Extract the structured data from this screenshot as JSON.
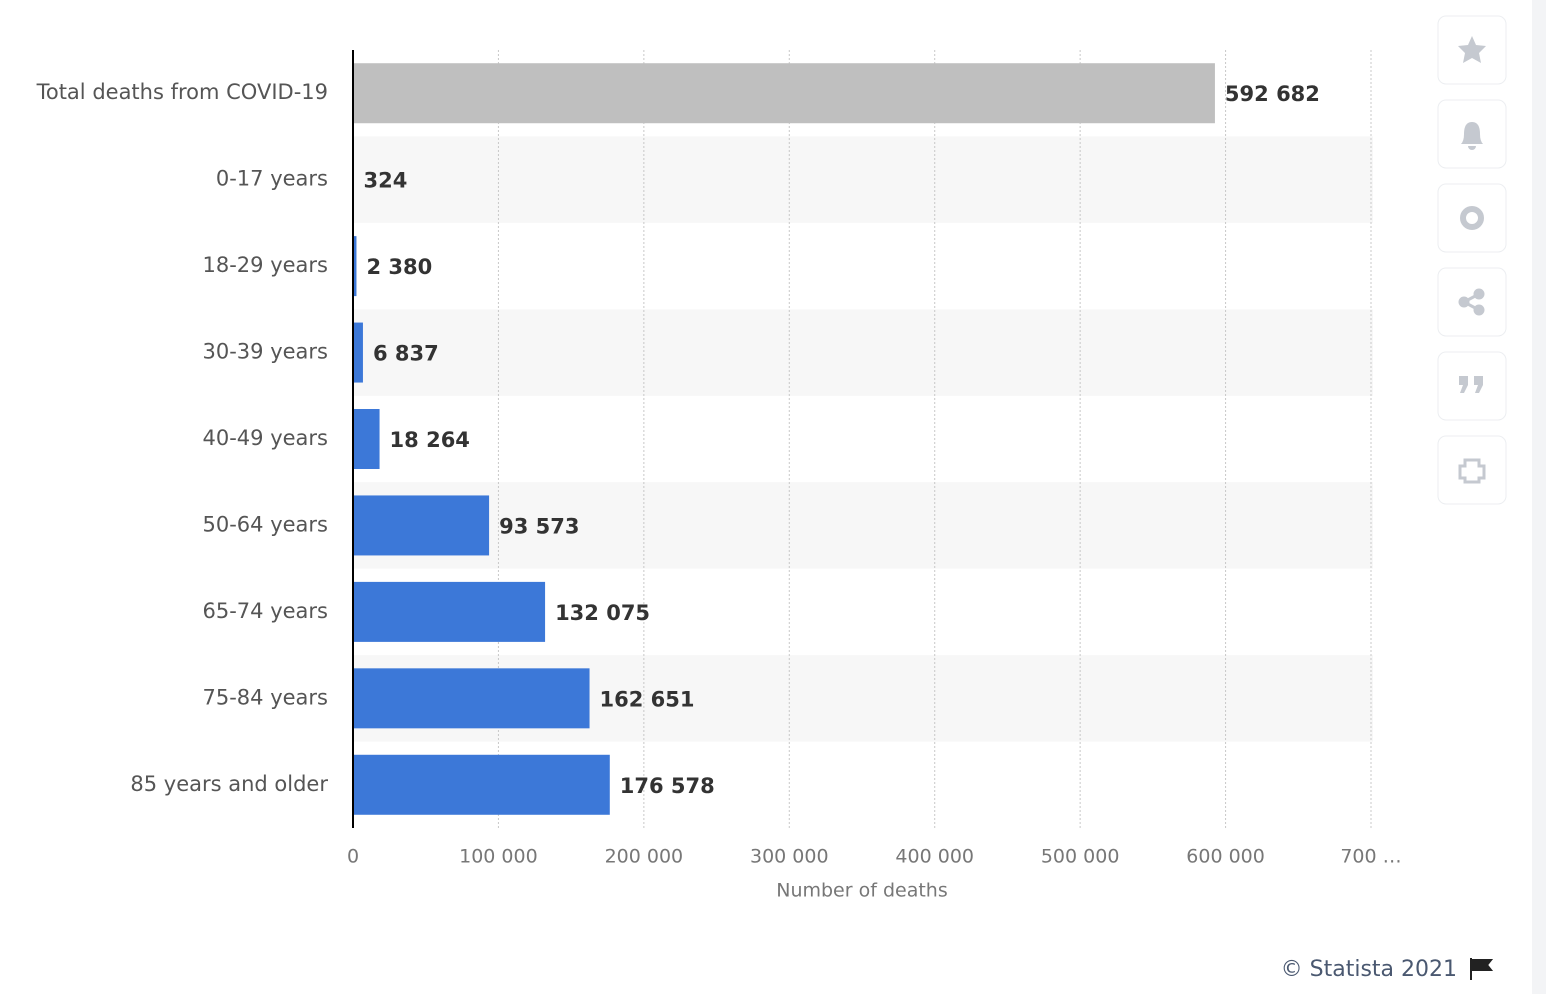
{
  "chart_data": {
    "type": "bar",
    "orientation": "horizontal",
    "categories": [
      "Total deaths from COVID-19",
      "0-17 years",
      "18-29 years",
      "30-39 years",
      "40-49 years",
      "50-64 years",
      "65-74 years",
      "75-84 years",
      "85 years and older"
    ],
    "values": [
      592682,
      324,
      2380,
      6837,
      18264,
      93573,
      132075,
      162651,
      176578
    ],
    "value_labels": [
      "592 682",
      "324",
      "2 380",
      "6 837",
      "18 264",
      "93 573",
      "132 075",
      "162 651",
      "176 578"
    ],
    "colors": [
      "#bfbfbf",
      "#3c78d8",
      "#3c78d8",
      "#3c78d8",
      "#3c78d8",
      "#3c78d8",
      "#3c78d8",
      "#3c78d8",
      "#3c78d8"
    ],
    "xlim": [
      0,
      700000
    ],
    "xticks": [
      0,
      {
        "value": 100000,
        "label": "100 000"
      },
      {
        "value": 200000,
        "label": "200 000"
      },
      {
        "value": 300000,
        "label": "300 000"
      },
      {
        "value": 400000,
        "label": "400 000"
      },
      {
        "value": 500000,
        "label": "500 000"
      },
      {
        "value": 600000,
        "label": "600 000"
      },
      {
        "value": 700000,
        "label": "700 …"
      }
    ],
    "xlabel": "Number of deaths",
    "grid": true
  },
  "footer": {
    "credit": "© Statista 2021"
  }
}
